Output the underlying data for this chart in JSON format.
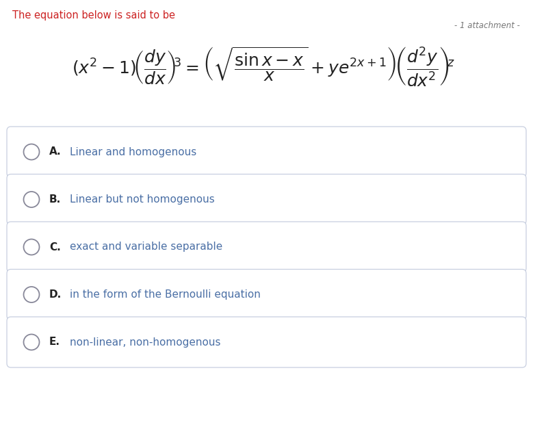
{
  "title": "The equation below is said to be",
  "attachment_text": "- 1 attachment -",
  "options": [
    {
      "label": "A.",
      "text": "Linear and homogenous"
    },
    {
      "label": "B.",
      "text": "Linear but not homogenous"
    },
    {
      "label": "C.",
      "text": "exact and variable separable"
    },
    {
      "label": "D.",
      "text": "in the form of the Bernoulli equation"
    },
    {
      "label": "E.",
      "text": "non-linear, non-homogenous"
    }
  ],
  "bg_color": "#ffffff",
  "title_color": "#cc2222",
  "option_text_color": "#4a6fa5",
  "label_color": "#222222",
  "border_color": "#c8cfe0",
  "attachment_color": "#777777",
  "circle_color": "#888899",
  "equation_color": "#222222",
  "fig_width": 7.79,
  "fig_height": 6.43,
  "fig_dpi": 100
}
